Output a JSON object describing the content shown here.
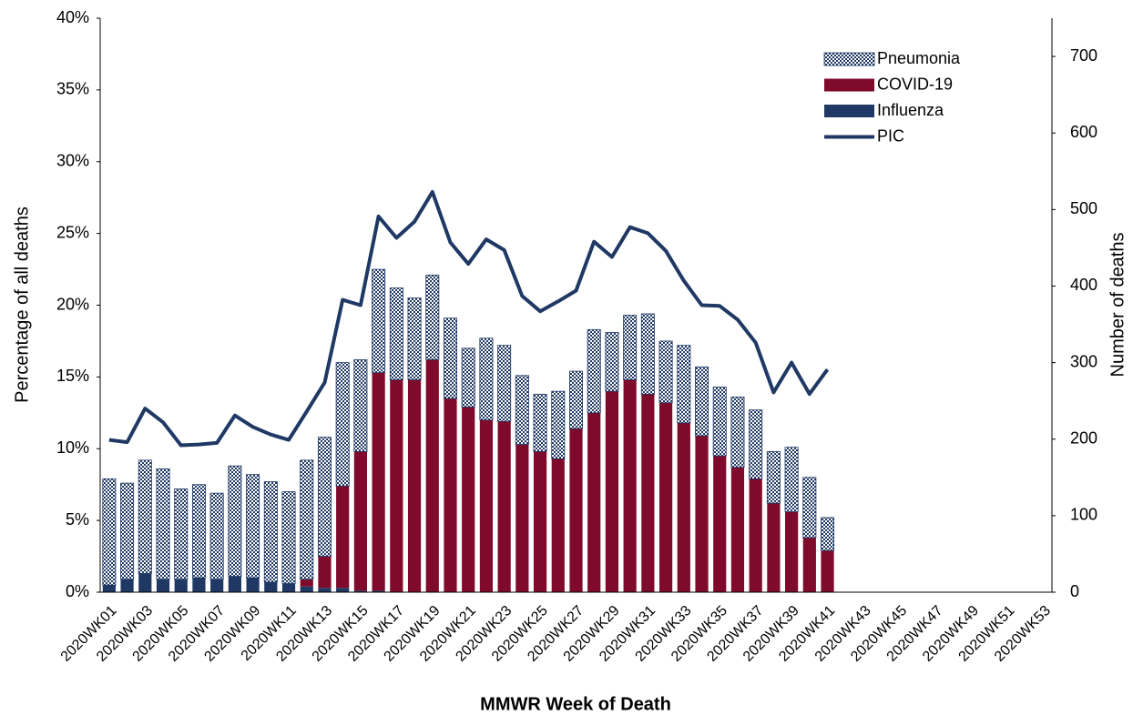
{
  "chart_data": {
    "type": "stacked-bar-line",
    "x_title": "MMWR Week of Death",
    "y_title": "Percentage of all deaths",
    "y2_title": "Number of deaths",
    "categories": [
      "2020WK01",
      null,
      "2020WK03",
      null,
      "2020WK05",
      null,
      "2020WK07",
      null,
      "2020WK09",
      null,
      "2020WK11",
      null,
      "2020WK13",
      null,
      "2020WK15",
      null,
      "2020WK17",
      null,
      "2020WK19",
      null,
      "2020WK21",
      null,
      "2020WK23",
      null,
      "2020WK25",
      null,
      "2020WK27",
      null,
      "2020WK29",
      null,
      "2020WK31",
      null,
      "2020WK33",
      null,
      "2020WK35",
      null,
      "2020WK37",
      null,
      "2020WK39",
      null,
      "2020WK41",
      null,
      "2020WK43",
      null,
      "2020WK45",
      null,
      "2020WK47",
      null,
      "2020WK49",
      null,
      "2020WK51",
      null,
      "2020WK53"
    ],
    "series": [
      {
        "name": "Pneumonia",
        "color": "#1f3864",
        "pattern": "checker",
        "values": [
          7.4,
          6.7,
          7.9,
          7.7,
          6.3,
          6.5,
          6.0,
          7.7,
          7.2,
          7.0,
          6.4,
          8.3,
          8.3,
          8.6,
          6.4,
          7.2,
          6.4,
          5.7,
          5.9,
          5.6,
          4.1,
          5.7,
          5.3,
          4.8,
          4.0,
          4.7,
          4.0,
          5.8,
          4.1,
          4.5,
          5.6,
          4.3,
          5.4,
          4.8,
          4.8,
          4.9,
          4.8,
          3.6,
          4.5,
          4.2,
          2.3,
          null,
          null,
          null,
          null,
          null,
          null,
          null,
          null,
          null,
          null,
          null,
          null
        ]
      },
      {
        "name": "COVID-19",
        "color": "#7f0a2b",
        "values": [
          0,
          0,
          0,
          0,
          0,
          0,
          0,
          0,
          0,
          0,
          0,
          0.5,
          2.2,
          7.1,
          9.7,
          15.2,
          14.8,
          14.8,
          16.2,
          13.5,
          12.9,
          12.0,
          11.9,
          10.3,
          9.8,
          9.3,
          11.4,
          12.5,
          14.0,
          14.8,
          13.8,
          13.2,
          11.8,
          10.9,
          9.5,
          8.7,
          7.9,
          6.2,
          5.6,
          3.8,
          2.9,
          null,
          null,
          null,
          null,
          null,
          null,
          null,
          null,
          null,
          null,
          null,
          null
        ]
      },
      {
        "name": "Influenza",
        "color": "#1f3864",
        "values": [
          0.5,
          0.9,
          1.3,
          0.9,
          0.9,
          1.0,
          0.9,
          1.1,
          1.0,
          0.7,
          0.6,
          0.4,
          0.3,
          0.3,
          0.1,
          0.1,
          0,
          0,
          0,
          0,
          0,
          0,
          0,
          0,
          0,
          0,
          0,
          0,
          0,
          0,
          0,
          0,
          0,
          0,
          0,
          0,
          0,
          0,
          0,
          0,
          0,
          null,
          null,
          null,
          null,
          null,
          null,
          null,
          null,
          null,
          null,
          null,
          null
        ]
      },
      {
        "name": "PIC",
        "color": "#1f3864",
        "type": "line",
        "axis": "y2",
        "values": [
          199,
          196,
          240,
          222,
          192,
          193,
          195,
          231,
          216,
          206,
          199,
          236,
          274,
          382,
          375,
          491,
          463,
          484,
          523,
          457,
          429,
          461,
          447,
          387,
          367,
          380,
          394,
          458,
          438,
          477,
          469,
          446,
          407,
          375,
          374,
          356,
          326,
          261,
          300,
          259,
          291,
          null,
          null,
          null,
          null,
          null,
          null,
          null,
          null,
          null,
          null,
          null,
          null
        ]
      }
    ],
    "ylim": [
      0,
      40
    ],
    "yticks": [
      {
        "value": 0,
        "label": "0%"
      },
      {
        "value": 5,
        "label": "5%"
      },
      {
        "value": 10,
        "label": "10%"
      },
      {
        "value": 15,
        "label": "15%"
      },
      {
        "value": 20,
        "label": "20%"
      },
      {
        "value": 25,
        "label": "25%"
      },
      {
        "value": 30,
        "label": "30%"
      },
      {
        "value": 35,
        "label": "35%"
      },
      {
        "value": 40,
        "label": "40%"
      }
    ],
    "y2lim": [
      0,
      750
    ],
    "y2ticks": [
      0,
      100,
      200,
      300,
      400,
      500,
      600,
      700
    ],
    "grid": false,
    "legend": "top-right"
  }
}
